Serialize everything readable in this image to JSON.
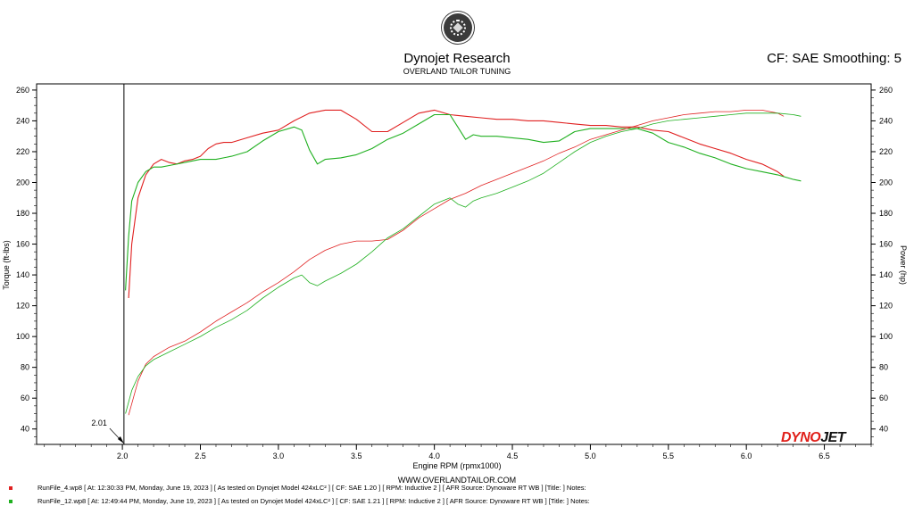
{
  "header": {
    "title": "Dynojet Research",
    "subtitle": "OVERLAND TAILOR TUNING",
    "cf_smoothing": "CF: SAE Smoothing: 5"
  },
  "footer": {
    "website": "WWW.OVERLANDTAILOR.COM",
    "runs": [
      {
        "color": "#e02020",
        "text": "RunFile_4.wp8 [ At:  12:30:33 PM, Monday, June 19, 2023 ] [ As tested on Dynojet Model 424xLC² ] [ CF:  SAE 1.20 ] [ RPM:  Inductive 2 ] [ AFR Source:  Dynoware RT WB ] [Title:  ]   Notes:"
      },
      {
        "color": "#20b020",
        "text": "RunFile_12.wp8 [ At:  12:49:44 PM, Monday, June 19, 2023 ] [ As tested on Dynojet Model 424xLC² ] [ CF:  SAE 1.21 ] [ RPM:  Inductive 2 ] [ AFR Source:  Dynoware RT WB ] [Title:  ]   Notes:"
      }
    ]
  },
  "brand": {
    "part1": "DYNO",
    "part2": "JET"
  },
  "icons": {
    "logo": "dynojet-seal-icon"
  },
  "chart_data": {
    "type": "line",
    "xlabel": "Engine RPM (rpmx1000)",
    "ylabel_left": "Torque (ft-lbs)",
    "ylabel_right": "Power (hp)",
    "xlim": [
      1.45,
      6.8
    ],
    "ylim": [
      30,
      264
    ],
    "x_ticks": [
      2.0,
      2.5,
      3.0,
      3.5,
      4.0,
      4.5,
      5.0,
      5.5,
      6.0,
      6.5
    ],
    "x_tick_labels": [
      "2.0",
      "2.5",
      "3.0",
      "3.5",
      "4.0",
      "4.5",
      "5.0",
      "5.5",
      "6.0",
      "6.5"
    ],
    "y_ticks": [
      40,
      60,
      80,
      100,
      120,
      140,
      160,
      180,
      200,
      220,
      240,
      260
    ],
    "y_tick_labels": [
      "40",
      "60",
      "80",
      "100",
      "120",
      "140",
      "160",
      "180",
      "200",
      "220",
      "240",
      "260"
    ],
    "cursor": {
      "x": 2.01,
      "label": "2.01"
    },
    "grid": false,
    "series": [
      {
        "name": "RunFile_4.wp8",
        "measure": "torque",
        "color": "#e02020",
        "x": [
          2.04,
          2.06,
          2.1,
          2.15,
          2.2,
          2.25,
          2.3,
          2.35,
          2.4,
          2.45,
          2.5,
          2.55,
          2.6,
          2.65,
          2.7,
          2.8,
          2.9,
          3.0,
          3.1,
          3.2,
          3.3,
          3.4,
          3.5,
          3.6,
          3.7,
          3.8,
          3.9,
          4.0,
          4.1,
          4.2,
          4.3,
          4.4,
          4.5,
          4.6,
          4.7,
          4.8,
          4.9,
          5.0,
          5.1,
          5.2,
          5.3,
          5.4,
          5.5,
          5.6,
          5.7,
          5.8,
          5.9,
          6.0,
          6.1,
          6.2,
          6.24
        ],
        "y": [
          125,
          160,
          190,
          205,
          212,
          215,
          213,
          212,
          214,
          215,
          217,
          222,
          225,
          226,
          226,
          229,
          232,
          234,
          240,
          245,
          247,
          247,
          241,
          233,
          233,
          239,
          245,
          247,
          244,
          243,
          242,
          241,
          241,
          240,
          240,
          239,
          238,
          237,
          237,
          236,
          236,
          234,
          233,
          229,
          225,
          222,
          219,
          215,
          212,
          207,
          204
        ]
      },
      {
        "name": "RunFile_12.wp8",
        "measure": "torque",
        "color": "#20b020",
        "x": [
          2.02,
          2.04,
          2.06,
          2.1,
          2.15,
          2.2,
          2.25,
          2.3,
          2.4,
          2.5,
          2.6,
          2.7,
          2.8,
          2.9,
          3.0,
          3.1,
          3.15,
          3.2,
          3.25,
          3.3,
          3.4,
          3.5,
          3.6,
          3.7,
          3.8,
          3.9,
          4.0,
          4.1,
          4.15,
          4.2,
          4.25,
          4.3,
          4.4,
          4.5,
          4.6,
          4.7,
          4.8,
          4.9,
          5.0,
          5.1,
          5.2,
          5.3,
          5.4,
          5.5,
          5.6,
          5.7,
          5.8,
          5.9,
          6.0,
          6.1,
          6.2,
          6.3,
          6.35
        ],
        "y": [
          130,
          165,
          188,
          200,
          207,
          210,
          210,
          211,
          213,
          215,
          215,
          217,
          220,
          227,
          233,
          236,
          234,
          221,
          212,
          215,
          216,
          218,
          222,
          228,
          232,
          238,
          244,
          244,
          236,
          228,
          231,
          230,
          230,
          229,
          228,
          226,
          227,
          233,
          235,
          235,
          235,
          235,
          232,
          226,
          223,
          219,
          216,
          212,
          209,
          207,
          205,
          202,
          201
        ]
      },
      {
        "name": "RunFile_4.wp8",
        "measure": "power",
        "color": "#e02020",
        "x": [
          2.04,
          2.1,
          2.15,
          2.2,
          2.3,
          2.4,
          2.5,
          2.6,
          2.7,
          2.8,
          2.9,
          3.0,
          3.1,
          3.2,
          3.3,
          3.4,
          3.5,
          3.6,
          3.7,
          3.8,
          3.9,
          4.0,
          4.1,
          4.2,
          4.3,
          4.4,
          4.5,
          4.6,
          4.7,
          4.8,
          4.9,
          5.0,
          5.1,
          5.2,
          5.3,
          5.4,
          5.5,
          5.6,
          5.7,
          5.8,
          5.9,
          6.0,
          6.1,
          6.2,
          6.24
        ],
        "y": [
          49,
          71,
          82,
          87,
          93,
          97,
          103,
          110,
          116,
          122,
          129,
          135,
          142,
          150,
          156,
          160,
          162,
          162,
          163,
          169,
          177,
          183,
          189,
          193,
          198,
          202,
          206,
          210,
          214,
          219,
          223,
          228,
          231,
          234,
          237,
          240,
          242,
          244,
          245,
          246,
          246,
          247,
          247,
          245,
          243
        ]
      },
      {
        "name": "RunFile_12.wp8",
        "measure": "power",
        "color": "#20b020",
        "x": [
          2.02,
          2.06,
          2.1,
          2.15,
          2.2,
          2.3,
          2.4,
          2.5,
          2.6,
          2.7,
          2.8,
          2.9,
          3.0,
          3.1,
          3.15,
          3.2,
          3.25,
          3.3,
          3.4,
          3.5,
          3.6,
          3.7,
          3.8,
          3.9,
          4.0,
          4.1,
          4.15,
          4.2,
          4.25,
          4.3,
          4.4,
          4.5,
          4.6,
          4.7,
          4.8,
          4.9,
          5.0,
          5.1,
          5.2,
          5.3,
          5.4,
          5.5,
          5.6,
          5.7,
          5.8,
          5.9,
          6.0,
          6.1,
          6.2,
          6.3,
          6.35
        ],
        "y": [
          50,
          65,
          74,
          81,
          85,
          90,
          95,
          100,
          106,
          111,
          117,
          125,
          132,
          138,
          140,
          135,
          133,
          136,
          141,
          147,
          155,
          164,
          170,
          178,
          186,
          190,
          186,
          184,
          188,
          190,
          193,
          197,
          201,
          206,
          213,
          220,
          226,
          230,
          233,
          235,
          238,
          240,
          241,
          242,
          243,
          244,
          245,
          245,
          245,
          244,
          243
        ]
      }
    ]
  }
}
